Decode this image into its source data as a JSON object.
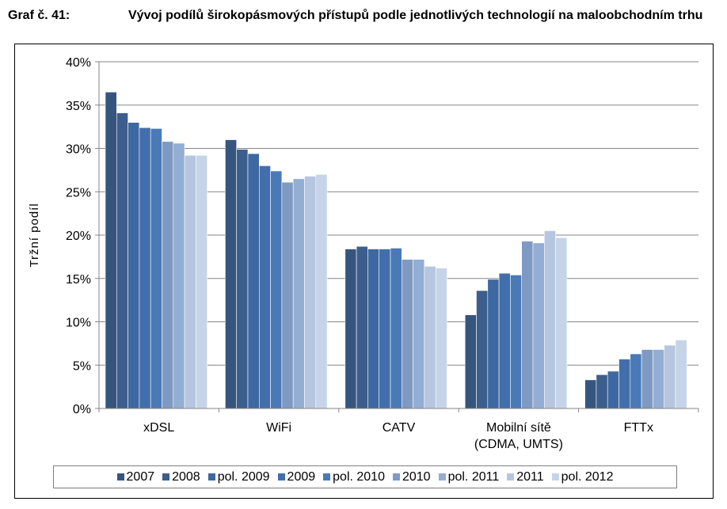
{
  "header": {
    "label": "Graf č. 41:",
    "title": "Vývoj podílů širokopásmových přístupů podle jednotlivých technologií na maloobchodním trhu"
  },
  "chart_data": {
    "type": "bar",
    "ylabel": "Tržní podíl",
    "ylim": [
      0,
      40
    ],
    "ytick_step": 5,
    "yticks": [
      "0%",
      "5%",
      "10%",
      "15%",
      "20%",
      "25%",
      "30%",
      "35%",
      "40%"
    ],
    "grid": true,
    "legend_position": "bottom",
    "categories": [
      [
        "xDSL"
      ],
      [
        "WiFi"
      ],
      [
        "CATV"
      ],
      [
        "Mobilní sítě",
        "(CDMA, UMTS)"
      ],
      [
        "FTTx"
      ]
    ],
    "series": [
      {
        "name": "2007",
        "color": "#35557e",
        "values": [
          36.5,
          31.0,
          18.4,
          10.8,
          3.3
        ]
      },
      {
        "name": "2008",
        "color": "#3b5e8c",
        "values": [
          34.1,
          29.9,
          18.7,
          13.6,
          3.9
        ]
      },
      {
        "name": "pol. 2009",
        "color": "#3e68a1",
        "values": [
          33.0,
          29.4,
          18.4,
          14.9,
          4.3
        ]
      },
      {
        "name": "2009",
        "color": "#426fab",
        "values": [
          32.4,
          28.0,
          18.4,
          15.6,
          5.7
        ]
      },
      {
        "name": "pol. 2010",
        "color": "#4a79b8",
        "values": [
          32.3,
          27.4,
          18.5,
          15.4,
          6.3
        ]
      },
      {
        "name": "2010",
        "color": "#7e9ac3",
        "values": [
          30.8,
          26.1,
          17.2,
          19.3,
          6.8
        ]
      },
      {
        "name": "pol. 2011",
        "color": "#93add3",
        "values": [
          30.6,
          26.5,
          17.2,
          19.1,
          6.8
        ]
      },
      {
        "name": "2011",
        "color": "#b6c6e0",
        "values": [
          29.2,
          26.8,
          16.4,
          20.5,
          7.3
        ]
      },
      {
        "name": "pol. 2012",
        "color": "#c6d4e8",
        "values": [
          29.2,
          27.0,
          16.2,
          19.7,
          7.9
        ]
      }
    ]
  }
}
